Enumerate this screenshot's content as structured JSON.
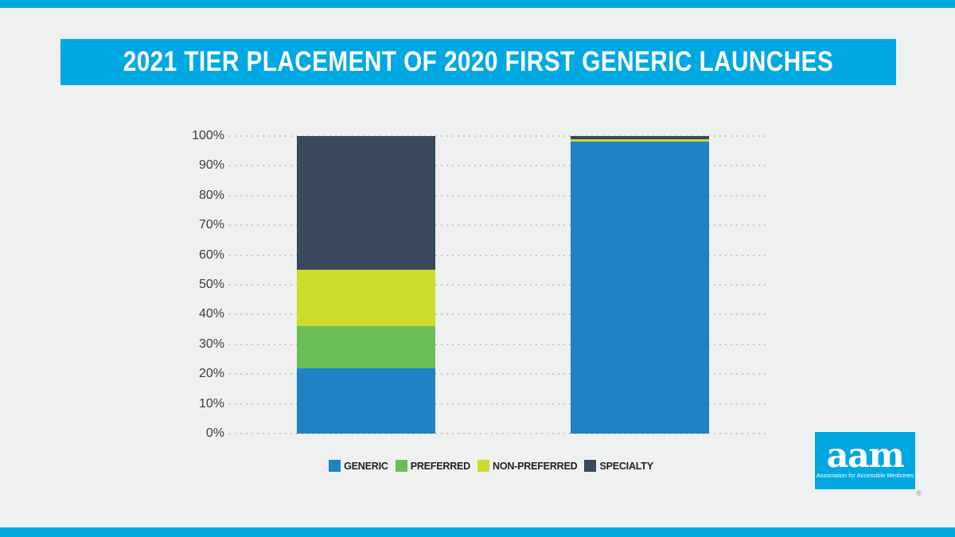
{
  "page": {
    "title_banner": "2021 TIER PLACEMENT OF 2020 FIRST GENERIC LAUNCHES"
  },
  "colors": {
    "brand_cyan": "#00A8E2",
    "background": "#EFF1F0",
    "generic_blue": "#1E82C4",
    "preferred_green": "#6BBE54",
    "non_preferred_yellow": "#CDDB2B",
    "specialty_navy": "#37495A",
    "grid_dot": "#C7CACA",
    "axis_text": "#3D3D3D",
    "legend_text": "#1F1F1F"
  },
  "chart_data": {
    "type": "bar",
    "stacked": true,
    "title": "2021 TIER PLACEMENT OF 2020 FIRST GENERIC LAUNCHES",
    "categories": [
      "",
      ""
    ],
    "series": [
      {
        "name": "GENERIC",
        "color": "#1E82C4",
        "values": [
          22,
          98
        ]
      },
      {
        "name": "PREFERRED",
        "color": "#6BBE54",
        "values": [
          14,
          0
        ]
      },
      {
        "name": "NON-PREFERRED",
        "color": "#CDDB2B",
        "values": [
          19,
          1
        ]
      },
      {
        "name": "SPECIALTY",
        "color": "#37495A",
        "values": [
          45,
          1
        ]
      }
    ],
    "xlabel": "",
    "ylabel": "",
    "ylim": [
      0,
      100
    ],
    "yticks": [
      "0%",
      "10%",
      "20%",
      "30%",
      "40%",
      "50%",
      "60%",
      "70%",
      "80%",
      "90%",
      "100%"
    ],
    "grid": "horizontal-dotted",
    "legend_position": "bottom"
  },
  "logo": {
    "text": "aam",
    "tagline": "Association for Accessible Medicines",
    "registered": "®"
  }
}
